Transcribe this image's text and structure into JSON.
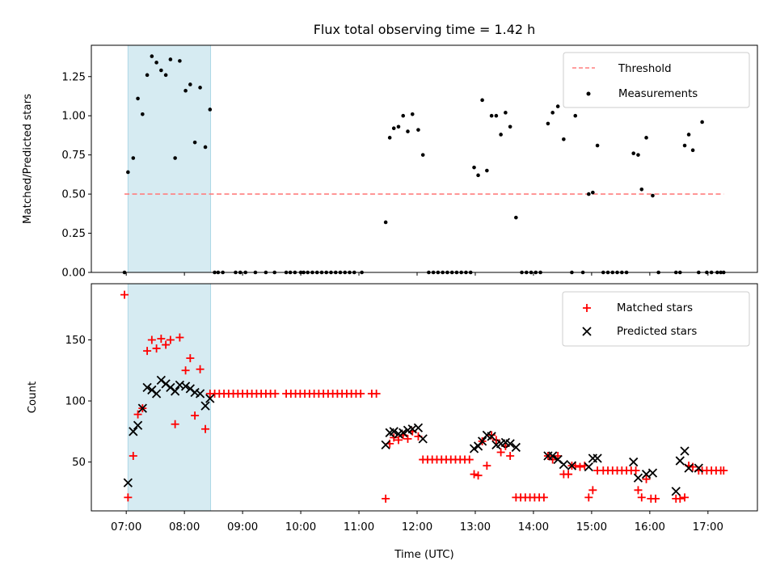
{
  "chart_data": [
    {
      "type": "scatter",
      "title": "Flux total observing time = 1.42 h",
      "xlabel": "",
      "ylabel": "Matched/Predicted stars",
      "ylim": [
        0,
        1.45
      ],
      "y_ticks": [
        0.0,
        0.25,
        0.5,
        0.75,
        1.0,
        1.25
      ],
      "y_tick_labels": [
        "0.00",
        "0.25",
        "0.50",
        "0.75",
        "1.00",
        "1.25"
      ],
      "legend": "top-right",
      "grid": false,
      "highlight_span": {
        "x": [
          7.03,
          8.45
        ],
        "color": "#add8e6"
      },
      "series": [
        {
          "name": "Threshold",
          "style": "dashed-line",
          "color": "#ff7f7f",
          "x": [
            6.97,
            17.27
          ],
          "y": [
            0.5,
            0.5
          ]
        },
        {
          "name": "Measurements",
          "style": "dot",
          "color": "#000000",
          "x": [
            6.97,
            7.03,
            7.12,
            7.2,
            7.28,
            7.36,
            7.44,
            7.52,
            7.6,
            7.68,
            7.76,
            7.84,
            7.92,
            8.02,
            8.1,
            8.18,
            8.27,
            8.36,
            8.44,
            8.52,
            8.58,
            8.66,
            8.88,
            8.96,
            9.05,
            9.22,
            9.4,
            9.55,
            9.75,
            9.82,
            9.9,
            10.0,
            10.05,
            10.12,
            10.2,
            10.28,
            10.36,
            10.44,
            10.52,
            10.6,
            10.68,
            10.76,
            10.84,
            10.92,
            11.05,
            11.46,
            11.53,
            11.6,
            11.68,
            11.76,
            11.84,
            11.92,
            12.02,
            12.1,
            12.2,
            12.28,
            12.36,
            12.44,
            12.52,
            12.6,
            12.68,
            12.76,
            12.84,
            12.92,
            12.98,
            13.05,
            13.12,
            13.2,
            13.28,
            13.36,
            13.44,
            13.52,
            13.6,
            13.7,
            13.8,
            13.88,
            13.96,
            14.04,
            14.12,
            14.25,
            14.33,
            14.42,
            14.52,
            14.66,
            14.72,
            14.85,
            14.95,
            15.02,
            15.1,
            15.2,
            15.28,
            15.36,
            15.44,
            15.52,
            15.6,
            15.72,
            15.8,
            15.86,
            15.94,
            16.05,
            16.15,
            16.45,
            16.52,
            16.6,
            16.67,
            16.74,
            16.84,
            16.9,
            16.98,
            17.06,
            17.16,
            17.22,
            17.27
          ],
          "y": [
            0.0,
            0.64,
            0.73,
            1.11,
            1.01,
            1.26,
            1.38,
            1.34,
            1.29,
            1.26,
            1.36,
            0.73,
            1.35,
            1.16,
            1.2,
            0.83,
            1.18,
            0.8,
            1.04,
            0.0,
            0.0,
            0.0,
            0.0,
            0.0,
            0.0,
            0.0,
            0.0,
            0.0,
            0.0,
            0.0,
            0.0,
            0.0,
            0.0,
            0.0,
            0.0,
            0.0,
            0.0,
            0.0,
            0.0,
            0.0,
            0.0,
            0.0,
            0.0,
            0.0,
            0.0,
            0.32,
            0.86,
            0.92,
            0.93,
            1.0,
            0.9,
            1.01,
            0.91,
            0.75,
            0.0,
            0.0,
            0.0,
            0.0,
            0.0,
            0.0,
            0.0,
            0.0,
            0.0,
            0.0,
            0.67,
            0.62,
            1.1,
            0.65,
            1.0,
            1.0,
            0.88,
            1.02,
            0.93,
            0.35,
            0.0,
            0.0,
            0.0,
            0.0,
            0.0,
            0.95,
            1.02,
            1.06,
            0.85,
            0.0,
            1.0,
            0.0,
            0.5,
            0.51,
            0.81,
            0.0,
            0.0,
            0.0,
            0.0,
            0.0,
            0.0,
            0.76,
            0.75,
            0.53,
            0.86,
            0.49,
            0.0,
            0.0,
            0.0,
            0.81,
            0.88,
            0.78,
            0.0,
            0.96,
            0.0,
            0.0,
            0.0,
            0.0,
            0.0
          ]
        }
      ]
    },
    {
      "type": "scatter",
      "title": "",
      "xlabel": "Time (UTC)",
      "ylabel": "Count",
      "ylim": [
        10,
        196
      ],
      "xlim": [
        6.4,
        17.85
      ],
      "y_ticks": [
        50,
        100,
        150
      ],
      "y_tick_labels": [
        "50",
        "100",
        "150"
      ],
      "x_ticks": [
        7,
        8,
        9,
        10,
        11,
        12,
        13,
        14,
        15,
        16,
        17
      ],
      "x_tick_labels": [
        "07:00",
        "08:00",
        "09:00",
        "10:00",
        "11:00",
        "12:00",
        "13:00",
        "14:00",
        "15:00",
        "16:00",
        "17:00"
      ],
      "legend": "top-right",
      "grid": false,
      "highlight_span": {
        "x": [
          7.03,
          8.45
        ],
        "color": "#add8e6"
      },
      "series": [
        {
          "name": "Matched stars",
          "marker": "plus",
          "color": "#ff0000",
          "x": [
            6.97,
            7.03,
            7.12,
            7.2,
            7.28,
            7.36,
            7.44,
            7.52,
            7.6,
            7.68,
            7.76,
            7.84,
            7.92,
            8.02,
            8.1,
            8.18,
            8.27,
            8.36,
            8.44,
            8.52,
            8.6,
            8.68,
            8.76,
            8.84,
            8.92,
            9.0,
            9.08,
            9.16,
            9.24,
            9.32,
            9.4,
            9.48,
            9.56,
            9.75,
            9.83,
            9.91,
            9.99,
            10.07,
            10.15,
            10.23,
            10.31,
            10.39,
            10.47,
            10.55,
            10.63,
            10.71,
            10.79,
            10.87,
            10.95,
            11.03,
            11.22,
            11.3,
            11.46,
            11.53,
            11.6,
            11.68,
            11.76,
            11.84,
            11.92,
            12.02,
            12.1,
            12.18,
            12.26,
            12.34,
            12.42,
            12.5,
            12.58,
            12.66,
            12.74,
            12.82,
            12.9,
            12.98,
            13.05,
            13.12,
            13.2,
            13.28,
            13.36,
            13.44,
            13.52,
            13.6,
            13.7,
            13.78,
            13.86,
            13.94,
            14.02,
            14.1,
            14.18,
            14.25,
            14.33,
            14.42,
            14.52,
            14.6,
            14.66,
            14.72,
            14.8,
            14.88,
            14.95,
            15.02,
            15.1,
            15.2,
            15.28,
            15.36,
            15.44,
            15.52,
            15.6,
            15.68,
            15.76,
            15.8,
            15.86,
            15.94,
            16.02,
            16.1,
            16.45,
            16.52,
            16.6,
            16.67,
            16.74,
            16.84,
            16.9,
            16.98,
            17.06,
            17.14,
            17.22,
            17.27
          ],
          "y": [
            187,
            21,
            55,
            89,
            94,
            141,
            150,
            143,
            151,
            146,
            150,
            81,
            152,
            125,
            135,
            88,
            126,
            77,
            106,
            106,
            106,
            106,
            106,
            106,
            106,
            106,
            106,
            106,
            106,
            106,
            106,
            106,
            106,
            106,
            106,
            106,
            106,
            106,
            106,
            106,
            106,
            106,
            106,
            106,
            106,
            106,
            106,
            106,
            106,
            106,
            106,
            106,
            20,
            65,
            70,
            68,
            72,
            69,
            75,
            71,
            52,
            52,
            52,
            52,
            52,
            52,
            52,
            52,
            52,
            52,
            52,
            40,
            39,
            67,
            47,
            72,
            68,
            58,
            63,
            55,
            21,
            21,
            21,
            21,
            21,
            21,
            21,
            55,
            52,
            55,
            40,
            40,
            47,
            47,
            46,
            47,
            21,
            27,
            43,
            43,
            43,
            43,
            43,
            43,
            43,
            43,
            43,
            27,
            21,
            36,
            20,
            20,
            20,
            20,
            21,
            47,
            46,
            43,
            43,
            43,
            43,
            43,
            43,
            43
          ]
        },
        {
          "name": "Predicted stars",
          "marker": "x",
          "color": "#000000",
          "x": [
            7.03,
            7.12,
            7.2,
            7.28,
            7.36,
            7.44,
            7.52,
            7.6,
            7.68,
            7.76,
            7.84,
            7.92,
            8.02,
            8.1,
            8.18,
            8.27,
            8.36,
            8.44,
            11.46,
            11.53,
            11.6,
            11.68,
            11.76,
            11.84,
            11.92,
            12.02,
            12.1,
            12.98,
            13.05,
            13.12,
            13.2,
            13.28,
            13.36,
            13.44,
            13.52,
            13.6,
            13.7,
            14.25,
            14.33,
            14.42,
            14.52,
            14.66,
            14.95,
            15.02,
            15.1,
            15.72,
            15.8,
            15.94,
            16.05,
            16.45,
            16.52,
            16.6,
            16.67,
            16.84
          ],
          "y": [
            33,
            75,
            80,
            94,
            111,
            109,
            106,
            117,
            114,
            111,
            108,
            113,
            112,
            110,
            107,
            106,
            96,
            102,
            64,
            74,
            75,
            73,
            74,
            76,
            77,
            78,
            69,
            61,
            63,
            67,
            72,
            71,
            64,
            65,
            66,
            65,
            62,
            55,
            55,
            52,
            48,
            47,
            46,
            53,
            53,
            50,
            37,
            40,
            41,
            26,
            51,
            59,
            45,
            45
          ]
        }
      ]
    }
  ]
}
